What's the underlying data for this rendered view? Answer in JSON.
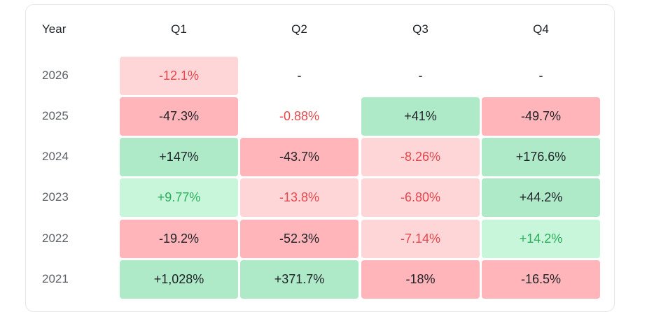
{
  "table": {
    "year_header": "Year",
    "quarters": [
      "Q1",
      "Q2",
      "Q3",
      "Q4"
    ],
    "rows": [
      {
        "year": "2026",
        "cells": [
          {
            "value": "-12.1%",
            "tone": "neg-light"
          },
          {
            "value": "-",
            "tone": "dash"
          },
          {
            "value": "-",
            "tone": "dash"
          },
          {
            "value": "-",
            "tone": "dash"
          }
        ]
      },
      {
        "year": "2025",
        "cells": [
          {
            "value": "-47.3%",
            "tone": "neg-strong"
          },
          {
            "value": "-0.88%",
            "tone": "neg-plain"
          },
          {
            "value": "+41%",
            "tone": "pos-strong"
          },
          {
            "value": "-49.7%",
            "tone": "neg-strong"
          }
        ]
      },
      {
        "year": "2024",
        "cells": [
          {
            "value": "+147%",
            "tone": "pos-strong"
          },
          {
            "value": "-43.7%",
            "tone": "neg-strong"
          },
          {
            "value": "-8.26%",
            "tone": "neg-light"
          },
          {
            "value": "+176.6%",
            "tone": "pos-strong"
          }
        ]
      },
      {
        "year": "2023",
        "cells": [
          {
            "value": "+9.77%",
            "tone": "pos-light"
          },
          {
            "value": "-13.8%",
            "tone": "neg-light"
          },
          {
            "value": "-6.80%",
            "tone": "neg-light"
          },
          {
            "value": "+44.2%",
            "tone": "pos-strong"
          }
        ]
      },
      {
        "year": "2022",
        "cells": [
          {
            "value": "-19.2%",
            "tone": "neg-strong"
          },
          {
            "value": "-52.3%",
            "tone": "neg-strong"
          },
          {
            "value": "-7.14%",
            "tone": "neg-light"
          },
          {
            "value": "+14.2%",
            "tone": "pos-light"
          }
        ]
      },
      {
        "year": "2021",
        "cells": [
          {
            "value": "+1,028%",
            "tone": "pos-strong"
          },
          {
            "value": "+371.7%",
            "tone": "pos-strong"
          },
          {
            "value": "-18%",
            "tone": "neg-strong"
          },
          {
            "value": "-16.5%",
            "tone": "neg-strong"
          }
        ]
      }
    ]
  },
  "colors": {
    "negative_strong_bg": "#ffb5ba",
    "negative_light_bg": "#ffd6d8",
    "negative_text": "#e5484d",
    "positive_strong_bg": "#aee9c8",
    "positive_light_bg": "#c7f6db",
    "positive_text": "#2dae5b"
  }
}
